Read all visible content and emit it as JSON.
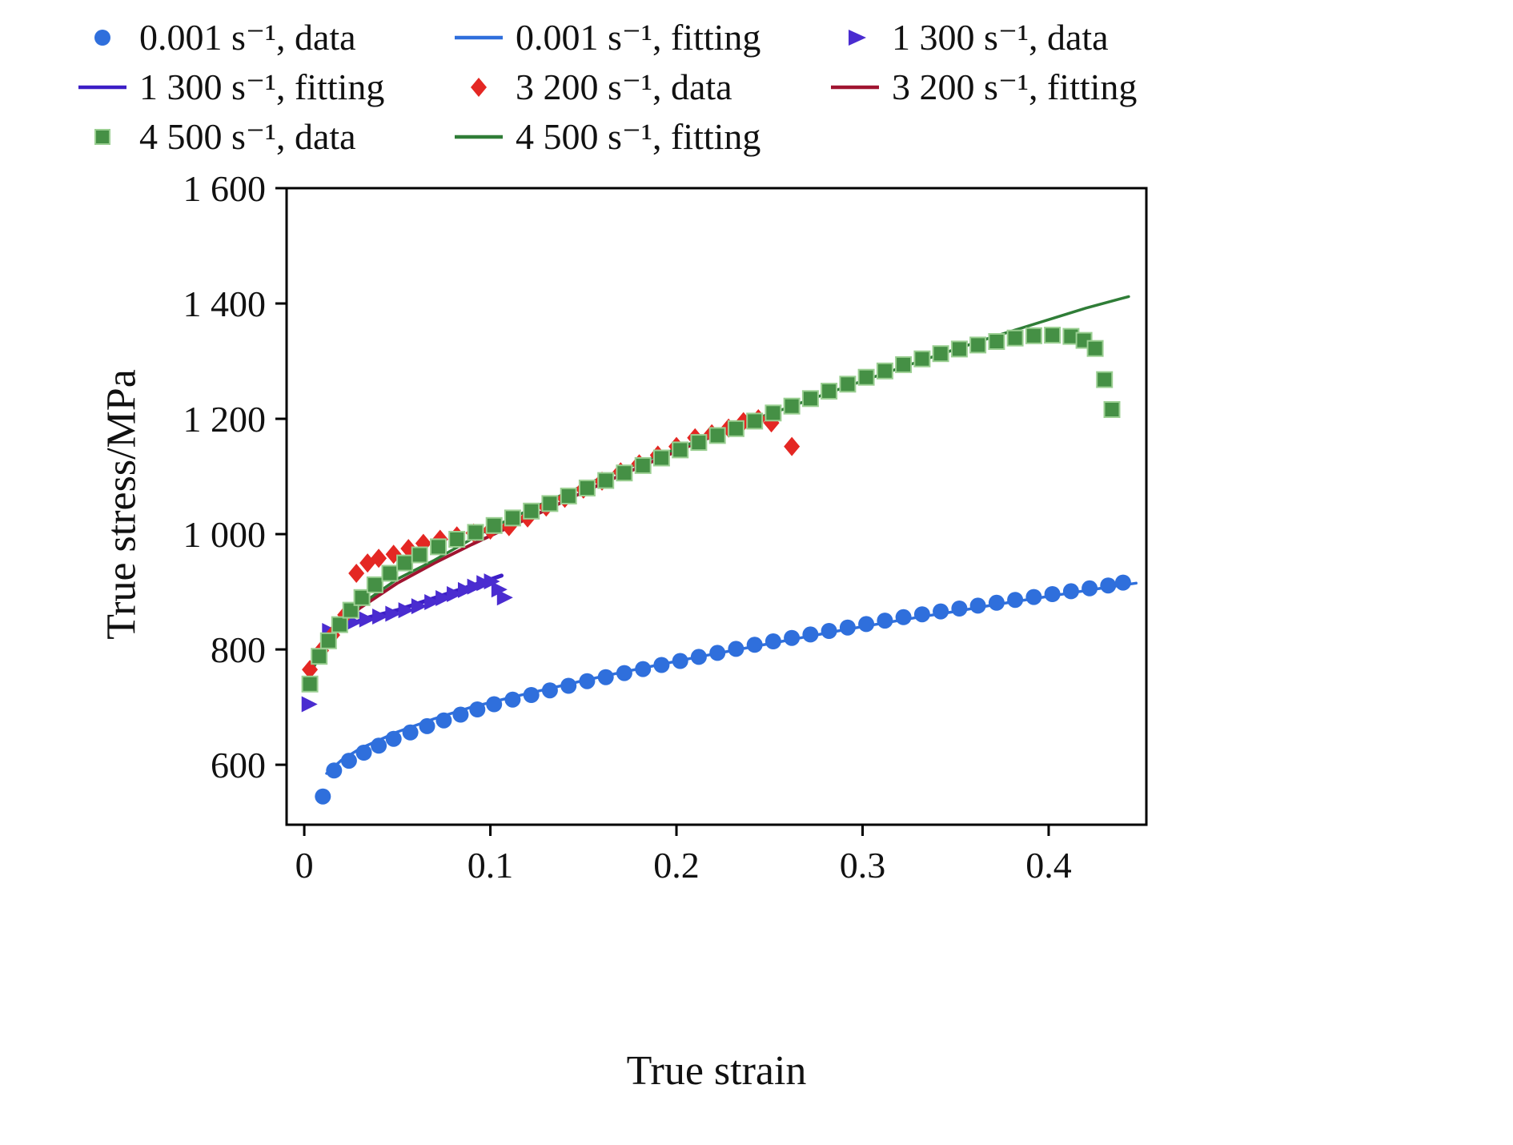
{
  "legend": {
    "position": "top",
    "items": [
      {
        "label": "0.001 s⁻¹, data",
        "marker": "circle",
        "color": "#2f6fdc"
      },
      {
        "label": "0.001 s⁻¹, fitting",
        "marker": "line",
        "color": "#2f6fdc"
      },
      {
        "label": "1 300 s⁻¹, data",
        "marker": "triangle",
        "color": "#4a2cd0"
      },
      {
        "label": "1 300 s⁻¹, fitting",
        "marker": "line",
        "color": "#3c1ec6"
      },
      {
        "label": "3 200 s⁻¹, data",
        "marker": "diamond",
        "color": "#e42723"
      },
      {
        "label": "3 200 s⁻¹, fitting",
        "marker": "line",
        "color": "#a01430"
      },
      {
        "label": "4 500 s⁻¹, data",
        "marker": "square",
        "color": "#459045",
        "edge": "#9bcf92"
      },
      {
        "label": "4 500 s⁻¹, fitting",
        "marker": "line",
        "color": "#2f7d37"
      }
    ]
  },
  "chart_data": {
    "type": "scatter",
    "title": "",
    "xlabel": "True strain",
    "ylabel": "True stress/MPa",
    "xlim": [
      -0.0095,
      0.4525
    ],
    "ylim": [
      496,
      1600
    ],
    "grid": false,
    "legend_position": "top",
    "x_ticks": [
      {
        "v": 0,
        "label": "0"
      },
      {
        "v": 0.1,
        "label": "0.1"
      },
      {
        "v": 0.2,
        "label": "0.2"
      },
      {
        "v": 0.3,
        "label": "0.3"
      },
      {
        "v": 0.4,
        "label": "0.4"
      }
    ],
    "y_ticks": [
      {
        "v": 600,
        "label": "600"
      },
      {
        "v": 800,
        "label": "800"
      },
      {
        "v": 1000,
        "label": "1 000"
      },
      {
        "v": 1200,
        "label": "1 200"
      },
      {
        "v": 1400,
        "label": "1 400"
      },
      {
        "v": 1600,
        "label": "1 600"
      }
    ],
    "series": [
      {
        "id": "0.001-data",
        "name": "0.001 s⁻¹, data",
        "kind": "scatter",
        "marker": "circle",
        "color": "#2f6fdc",
        "points": [
          [
            0.01,
            545
          ],
          [
            0.016,
            590
          ],
          [
            0.024,
            607
          ],
          [
            0.032,
            621
          ],
          [
            0.04,
            633
          ],
          [
            0.048,
            645
          ],
          [
            0.057,
            656
          ],
          [
            0.066,
            667
          ],
          [
            0.075,
            677
          ],
          [
            0.084,
            687
          ],
          [
            0.093,
            696
          ],
          [
            0.102,
            705
          ],
          [
            0.112,
            713
          ],
          [
            0.122,
            721
          ],
          [
            0.132,
            729
          ],
          [
            0.142,
            737
          ],
          [
            0.152,
            745
          ],
          [
            0.162,
            752
          ],
          [
            0.172,
            759
          ],
          [
            0.182,
            766
          ],
          [
            0.192,
            773
          ],
          [
            0.202,
            780
          ],
          [
            0.212,
            787
          ],
          [
            0.222,
            794
          ],
          [
            0.232,
            801
          ],
          [
            0.242,
            808
          ],
          [
            0.252,
            814
          ],
          [
            0.262,
            820
          ],
          [
            0.272,
            826
          ],
          [
            0.282,
            832
          ],
          [
            0.292,
            838
          ],
          [
            0.302,
            844
          ],
          [
            0.312,
            850
          ],
          [
            0.322,
            856
          ],
          [
            0.332,
            861
          ],
          [
            0.342,
            866
          ],
          [
            0.352,
            871
          ],
          [
            0.362,
            876
          ],
          [
            0.372,
            881
          ],
          [
            0.382,
            886
          ],
          [
            0.392,
            891
          ],
          [
            0.402,
            896
          ],
          [
            0.412,
            901
          ],
          [
            0.422,
            906
          ],
          [
            0.432,
            911
          ],
          [
            0.44,
            916
          ]
        ]
      },
      {
        "id": "0.001-fit",
        "name": "0.001 s⁻¹, fitting",
        "kind": "line",
        "color": "#2f6fdc",
        "width": 3.5,
        "points": [
          [
            0.012,
            585
          ],
          [
            0.02,
            608
          ],
          [
            0.03,
            628
          ],
          [
            0.05,
            657
          ],
          [
            0.07,
            680
          ],
          [
            0.09,
            700
          ],
          [
            0.11,
            716
          ],
          [
            0.13,
            731
          ],
          [
            0.15,
            746
          ],
          [
            0.17,
            760
          ],
          [
            0.19,
            773
          ],
          [
            0.21,
            786
          ],
          [
            0.23,
            798
          ],
          [
            0.25,
            810
          ],
          [
            0.27,
            822
          ],
          [
            0.29,
            834
          ],
          [
            0.31,
            845
          ],
          [
            0.33,
            856
          ],
          [
            0.35,
            866
          ],
          [
            0.37,
            877
          ],
          [
            0.39,
            887
          ],
          [
            0.41,
            897
          ],
          [
            0.43,
            907
          ],
          [
            0.447,
            915
          ]
        ]
      },
      {
        "id": "1300-data",
        "name": "1 300 s⁻¹, data",
        "kind": "scatter",
        "marker": "triangle",
        "color": "#4a2cd0",
        "points": [
          [
            0.002,
            705
          ],
          [
            0.013,
            832
          ],
          [
            0.019,
            840
          ],
          [
            0.026,
            847
          ],
          [
            0.033,
            852
          ],
          [
            0.04,
            857
          ],
          [
            0.047,
            862
          ],
          [
            0.054,
            868
          ],
          [
            0.061,
            875
          ],
          [
            0.068,
            882
          ],
          [
            0.074,
            889
          ],
          [
            0.08,
            896
          ],
          [
            0.086,
            903
          ],
          [
            0.091,
            909
          ],
          [
            0.096,
            915
          ],
          [
            0.1,
            918
          ],
          [
            0.104,
            904
          ],
          [
            0.107,
            890
          ]
        ]
      },
      {
        "id": "1300-fit",
        "name": "1 300 s⁻¹, fitting",
        "kind": "line",
        "color": "#3c1ec6",
        "width": 5,
        "points": [
          [
            0.01,
            818
          ],
          [
            0.02,
            838
          ],
          [
            0.035,
            856
          ],
          [
            0.05,
            868
          ],
          [
            0.065,
            884
          ],
          [
            0.08,
            900
          ],
          [
            0.095,
            916
          ],
          [
            0.106,
            928
          ]
        ]
      },
      {
        "id": "3200-data",
        "name": "3 200 s⁻¹, data",
        "kind": "scatter",
        "marker": "diamond",
        "color": "#e42723",
        "points": [
          [
            0.003,
            765
          ],
          [
            0.009,
            798
          ],
          [
            0.015,
            825
          ],
          [
            0.022,
            860
          ],
          [
            0.028,
            932
          ],
          [
            0.034,
            950
          ],
          [
            0.04,
            958
          ],
          [
            0.048,
            965
          ],
          [
            0.056,
            975
          ],
          [
            0.064,
            984
          ],
          [
            0.073,
            991
          ],
          [
            0.082,
            997
          ],
          [
            0.091,
            1002
          ],
          [
            0.1,
            1007
          ],
          [
            0.11,
            1013
          ],
          [
            0.12,
            1028
          ],
          [
            0.13,
            1047
          ],
          [
            0.14,
            1062
          ],
          [
            0.15,
            1078
          ],
          [
            0.16,
            1092
          ],
          [
            0.17,
            1108
          ],
          [
            0.18,
            1122
          ],
          [
            0.19,
            1137
          ],
          [
            0.2,
            1152
          ],
          [
            0.21,
            1167
          ],
          [
            0.219,
            1174
          ],
          [
            0.228,
            1184
          ],
          [
            0.236,
            1195
          ],
          [
            0.244,
            1200
          ],
          [
            0.251,
            1193
          ],
          [
            0.262,
            1152
          ]
        ]
      },
      {
        "id": "3200-fit",
        "name": "3 200 s⁻¹, fitting",
        "kind": "line",
        "color": "#a01430",
        "width": 4,
        "points": [
          [
            0.004,
            768
          ],
          [
            0.01,
            800
          ],
          [
            0.02,
            843
          ],
          [
            0.03,
            872
          ],
          [
            0.05,
            915
          ],
          [
            0.07,
            950
          ],
          [
            0.09,
            982
          ],
          [
            0.11,
            1012
          ],
          [
            0.13,
            1042
          ],
          [
            0.15,
            1073
          ],
          [
            0.17,
            1102
          ],
          [
            0.19,
            1130
          ],
          [
            0.21,
            1157
          ],
          [
            0.23,
            1184
          ],
          [
            0.248,
            1206
          ]
        ]
      },
      {
        "id": "4500-data",
        "name": "4 500 s⁻¹, data",
        "kind": "scatter",
        "marker": "square",
        "color": "#459045",
        "edge": "#9bcf92",
        "points": [
          [
            0.003,
            740
          ],
          [
            0.008,
            788
          ],
          [
            0.013,
            815
          ],
          [
            0.019,
            843
          ],
          [
            0.025,
            868
          ],
          [
            0.031,
            890
          ],
          [
            0.038,
            912
          ],
          [
            0.046,
            932
          ],
          [
            0.054,
            950
          ],
          [
            0.062,
            964
          ],
          [
            0.072,
            978
          ],
          [
            0.082,
            991
          ],
          [
            0.092,
            1003
          ],
          [
            0.102,
            1015
          ],
          [
            0.112,
            1028
          ],
          [
            0.122,
            1040
          ],
          [
            0.132,
            1053
          ],
          [
            0.142,
            1066
          ],
          [
            0.152,
            1080
          ],
          [
            0.162,
            1093
          ],
          [
            0.172,
            1106
          ],
          [
            0.182,
            1119
          ],
          [
            0.192,
            1132
          ],
          [
            0.202,
            1146
          ],
          [
            0.212,
            1159
          ],
          [
            0.222,
            1171
          ],
          [
            0.232,
            1183
          ],
          [
            0.242,
            1196
          ],
          [
            0.252,
            1210
          ],
          [
            0.262,
            1222
          ],
          [
            0.272,
            1235
          ],
          [
            0.282,
            1248
          ],
          [
            0.292,
            1260
          ],
          [
            0.302,
            1272
          ],
          [
            0.312,
            1283
          ],
          [
            0.322,
            1294
          ],
          [
            0.332,
            1304
          ],
          [
            0.342,
            1313
          ],
          [
            0.352,
            1321
          ],
          [
            0.362,
            1328
          ],
          [
            0.372,
            1334
          ],
          [
            0.382,
            1340
          ],
          [
            0.392,
            1344
          ],
          [
            0.402,
            1345
          ],
          [
            0.412,
            1343
          ],
          [
            0.419,
            1336
          ],
          [
            0.425,
            1322
          ],
          [
            0.43,
            1268
          ],
          [
            0.434,
            1216
          ]
        ]
      },
      {
        "id": "4500-fit",
        "name": "4 500 s⁻¹, fitting",
        "kind": "line",
        "color": "#2f7d37",
        "width": 3.5,
        "points": [
          [
            0.004,
            762
          ],
          [
            0.01,
            800
          ],
          [
            0.02,
            845
          ],
          [
            0.03,
            877
          ],
          [
            0.05,
            922
          ],
          [
            0.07,
            955
          ],
          [
            0.1,
            1010
          ],
          [
            0.13,
            1056
          ],
          [
            0.16,
            1098
          ],
          [
            0.19,
            1136
          ],
          [
            0.22,
            1172
          ],
          [
            0.25,
            1208
          ],
          [
            0.28,
            1243
          ],
          [
            0.31,
            1277
          ],
          [
            0.34,
            1310
          ],
          [
            0.37,
            1342
          ],
          [
            0.4,
            1372
          ],
          [
            0.42,
            1392
          ],
          [
            0.443,
            1412
          ]
        ]
      }
    ]
  }
}
